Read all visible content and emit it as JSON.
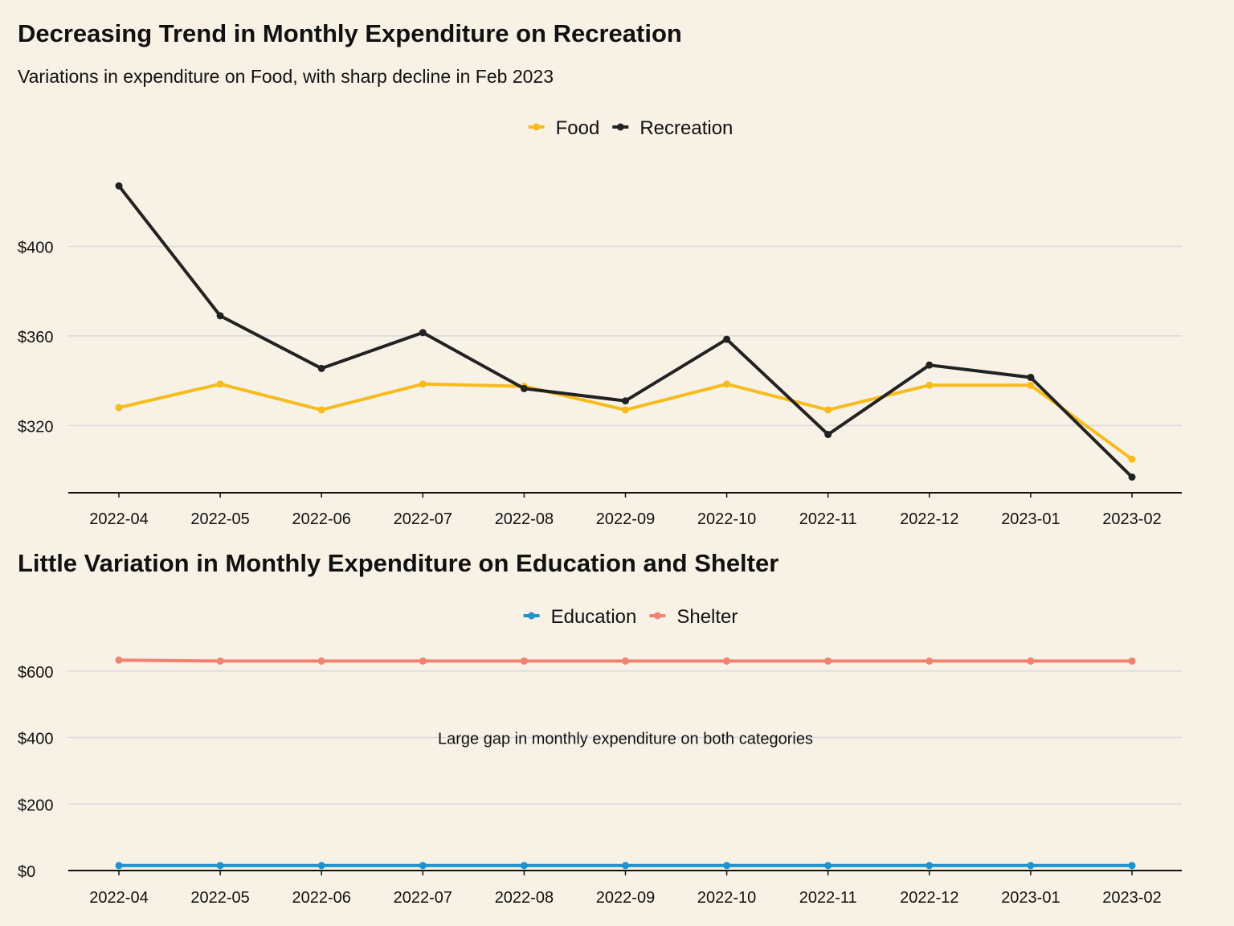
{
  "chart_data": [
    {
      "type": "line",
      "title": "Decreasing Trend in Monthly Expenditure on Recreation",
      "subtitle": "Variations in expenditure on Food, with sharp decline in Feb 2023",
      "xlabel": "",
      "ylabel": "",
      "categories": [
        "2022-04",
        "2022-05",
        "2022-06",
        "2022-07",
        "2022-08",
        "2022-09",
        "2022-10",
        "2022-11",
        "2022-12",
        "2023-01",
        "2023-02"
      ],
      "series": [
        {
          "name": "Food",
          "color": "#f5bc1c",
          "values": [
            328,
            338.5,
            327,
            338.5,
            337.5,
            327,
            338.5,
            327,
            338,
            338,
            305
          ]
        },
        {
          "name": "Recreation",
          "color": "#222222",
          "values": [
            427,
            369,
            345.5,
            361.5,
            336.5,
            331,
            358.5,
            316,
            347,
            341.5,
            297
          ]
        }
      ],
      "ylim": [
        290,
        440
      ],
      "yticks": [
        320,
        360,
        400
      ],
      "ytick_labels": [
        "$320",
        "$360",
        "$400"
      ],
      "grid": true,
      "legend_position": "top"
    },
    {
      "type": "line",
      "title": "Little Variation in Monthly Expenditure on Education and Shelter",
      "xlabel": "",
      "ylabel": "",
      "categories": [
        "2022-04",
        "2022-05",
        "2022-06",
        "2022-07",
        "2022-08",
        "2022-09",
        "2022-10",
        "2022-11",
        "2022-12",
        "2023-01",
        "2023-02"
      ],
      "series": [
        {
          "name": "Education",
          "color": "#1f93cf",
          "values": [
            15,
            15,
            15,
            15,
            15,
            15,
            15,
            15,
            15,
            15,
            15
          ]
        },
        {
          "name": "Shelter",
          "color": "#f08272",
          "values": [
            633,
            630,
            630,
            630,
            630,
            630,
            630,
            630,
            630,
            630,
            630
          ]
        }
      ],
      "ylim": [
        0,
        660
      ],
      "yticks": [
        0,
        200,
        400,
        600
      ],
      "ytick_labels": [
        "$0",
        "$200",
        "$400",
        "$600"
      ],
      "annotations": [
        {
          "text": "Large gap in monthly expenditure on both categories",
          "x": "2022-09",
          "y": 400
        }
      ],
      "grid": true,
      "legend_position": "top"
    }
  ]
}
